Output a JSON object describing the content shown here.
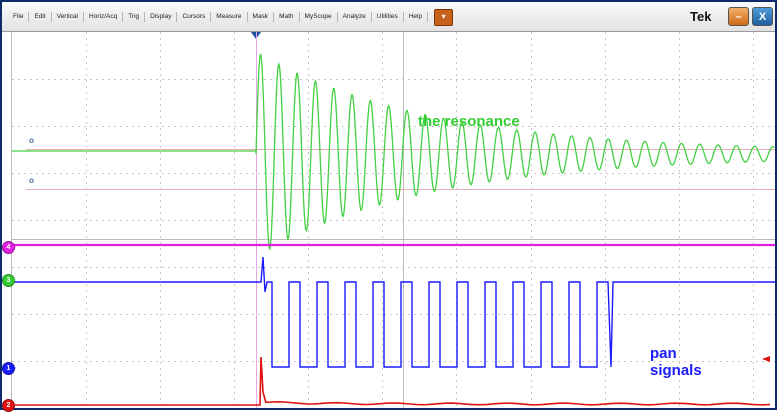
{
  "menu": {
    "items": [
      "File",
      "Edit",
      "Vertical",
      "Horiz/Acq",
      "Trig",
      "Display",
      "Cursors",
      "Measure",
      "Mask",
      "Math",
      "MyScope",
      "Analyze",
      "Utilities",
      "Help"
    ],
    "dropdown_icon": "chevron-down-icon"
  },
  "window": {
    "brand": "Tek",
    "minimize_icon": "minimize-icon",
    "close_icon": "close-icon",
    "close_glyph": "X"
  },
  "channels": [
    {
      "id": "4",
      "color": "#e020e0"
    },
    {
      "id": "3",
      "color": "#33cc33"
    },
    {
      "id": "1",
      "color": "#1a1aff"
    },
    {
      "id": "2",
      "color": "#e01010"
    }
  ],
  "annotations": {
    "resonance": "the resonance",
    "pan_line1": "pan",
    "pan_line2": "signals"
  },
  "colors": {
    "resonance_trace": "#44d044",
    "magenta_trace": "#e020e0",
    "blue_trace": "#1a1aff",
    "red_trace": "#e01010",
    "grid": "#c8c8c8",
    "trigger": "#1a4fa0"
  }
}
